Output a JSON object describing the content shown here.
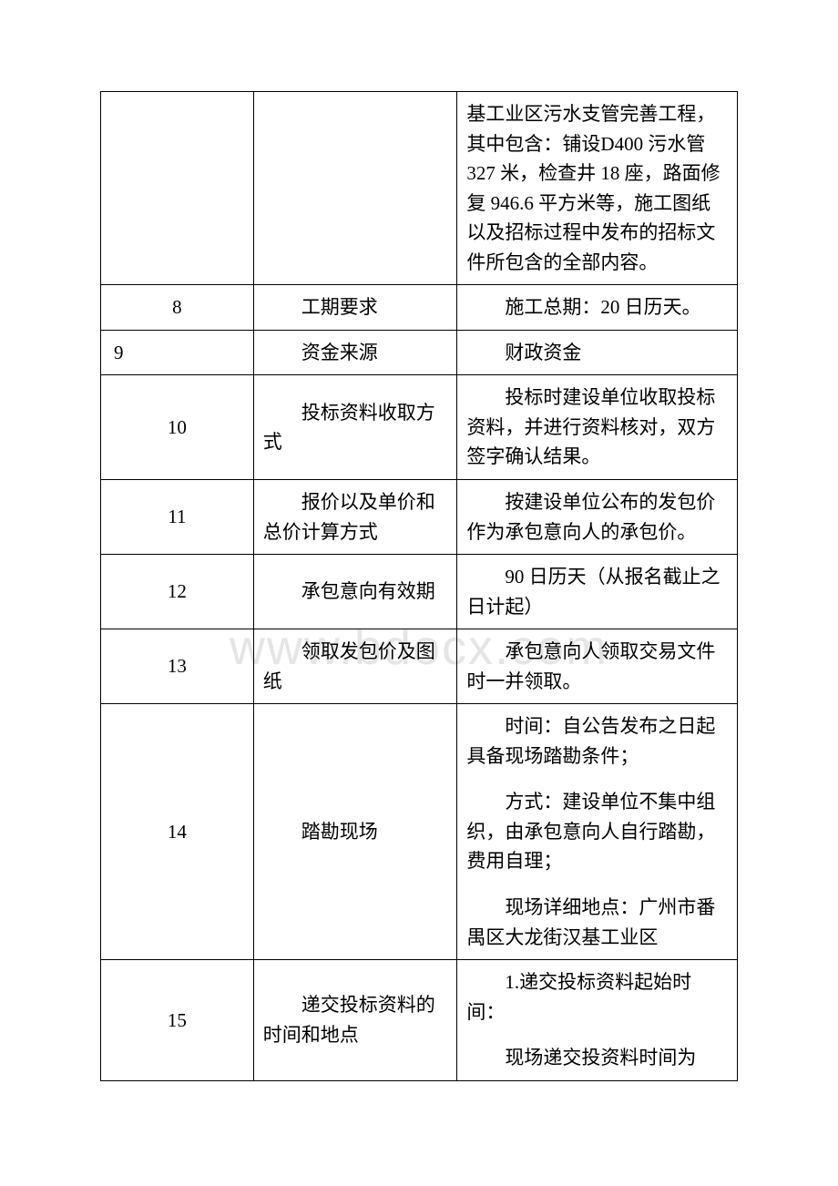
{
  "watermark": "www.bdocx.com",
  "table": {
    "columns": [
      "col1",
      "col2",
      "col3"
    ],
    "column_widths_pct": [
      24,
      32,
      44
    ],
    "border_color": "#000000",
    "font_size_pt": 16,
    "line_height": 1.55,
    "rows": [
      {
        "num": "",
        "label": "",
        "content_paragraphs": [
          "基工业区污水支管完善工程，其中包含：铺设D400 污水管 327 米，检查井 18 座，路面修复 946.6 平方米等，施工图纸以及招标过程中发布的招标文件所包含的全部内容。"
        ],
        "num_align": "center",
        "content_noindent": true
      },
      {
        "num": "8",
        "label": "工期要求",
        "content_paragraphs": [
          "施工总期：20 日历天。"
        ],
        "num_align": "center"
      },
      {
        "num": "9",
        "label": "资金来源",
        "content_paragraphs": [
          "财政资金"
        ],
        "num_align": "left"
      },
      {
        "num": "10",
        "label": "投标资料收取方式",
        "content_paragraphs": [
          "投标时建设单位收取投标资料，并进行资料核对，双方签字确认结果。"
        ],
        "num_align": "center"
      },
      {
        "num": "11",
        "label": "报价以及单价和总价计算方式",
        "content_paragraphs": [
          "按建设单位公布的发包价作为承包意向人的承包价。"
        ],
        "num_align": "center"
      },
      {
        "num": "12",
        "label": "承包意向有效期",
        "content_paragraphs": [
          "90 日历天（从报名截止之日计起）"
        ],
        "num_align": "center"
      },
      {
        "num": "13",
        "label": "领取发包价及图纸",
        "content_paragraphs": [
          "承包意向人领取交易文件时一并领取。"
        ],
        "num_align": "center"
      },
      {
        "num": "14",
        "label": "踏勘现场",
        "content_paragraphs": [
          "时间：自公告发布之日起具备现场踏勘条件；",
          "方式：建设单位不集中组织，由承包意向人自行踏勘，费用自理；",
          "现场详细地点：广州市番禺区大龙街汉基工业区"
        ],
        "num_align": "center"
      },
      {
        "num": "15",
        "label": "递交投标资料的时间和地点",
        "content_paragraphs": [
          "1.递交投标资料起始时间：",
          "现场递交投资料时间为"
        ],
        "num_align": "center"
      }
    ]
  }
}
